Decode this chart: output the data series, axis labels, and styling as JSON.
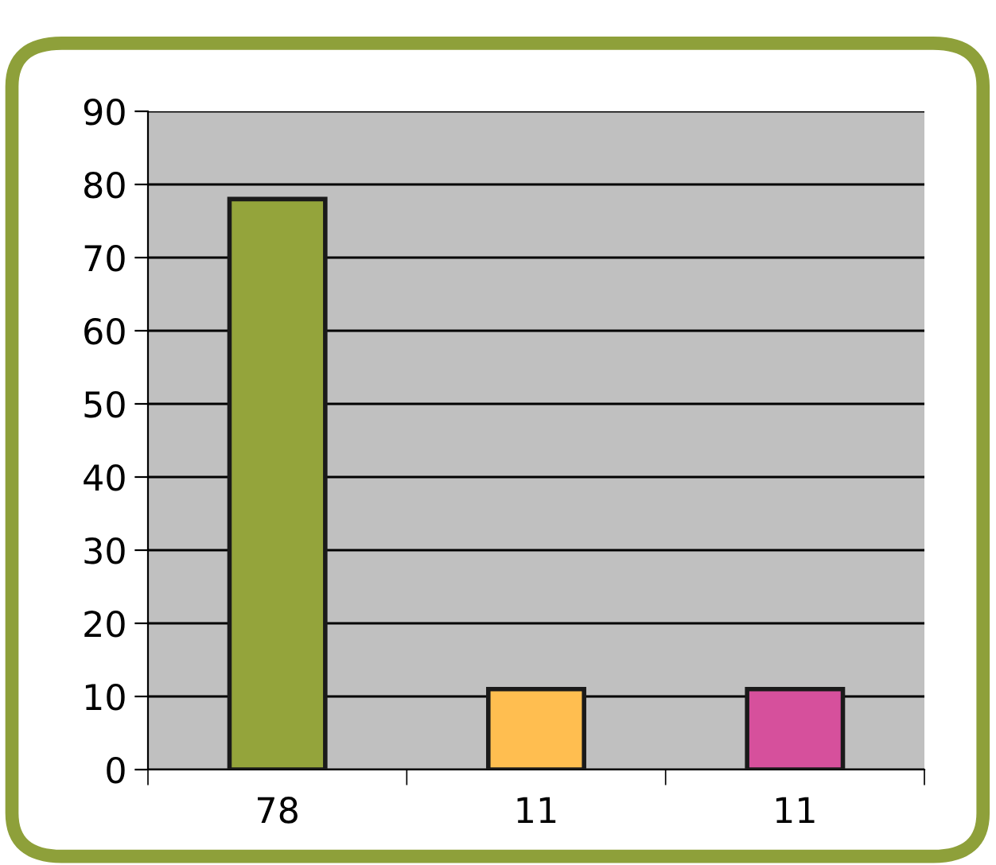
{
  "chart_data": {
    "type": "bar",
    "categories": [
      "78",
      "11",
      "11"
    ],
    "values": [
      78,
      11,
      11
    ],
    "colors": [
      "#94a43b",
      "#ffbe50",
      "#d6509c"
    ],
    "ylim": [
      0,
      90
    ],
    "yticks": [
      0,
      10,
      20,
      30,
      40,
      50,
      60,
      70,
      80,
      90
    ],
    "grid": "y"
  }
}
